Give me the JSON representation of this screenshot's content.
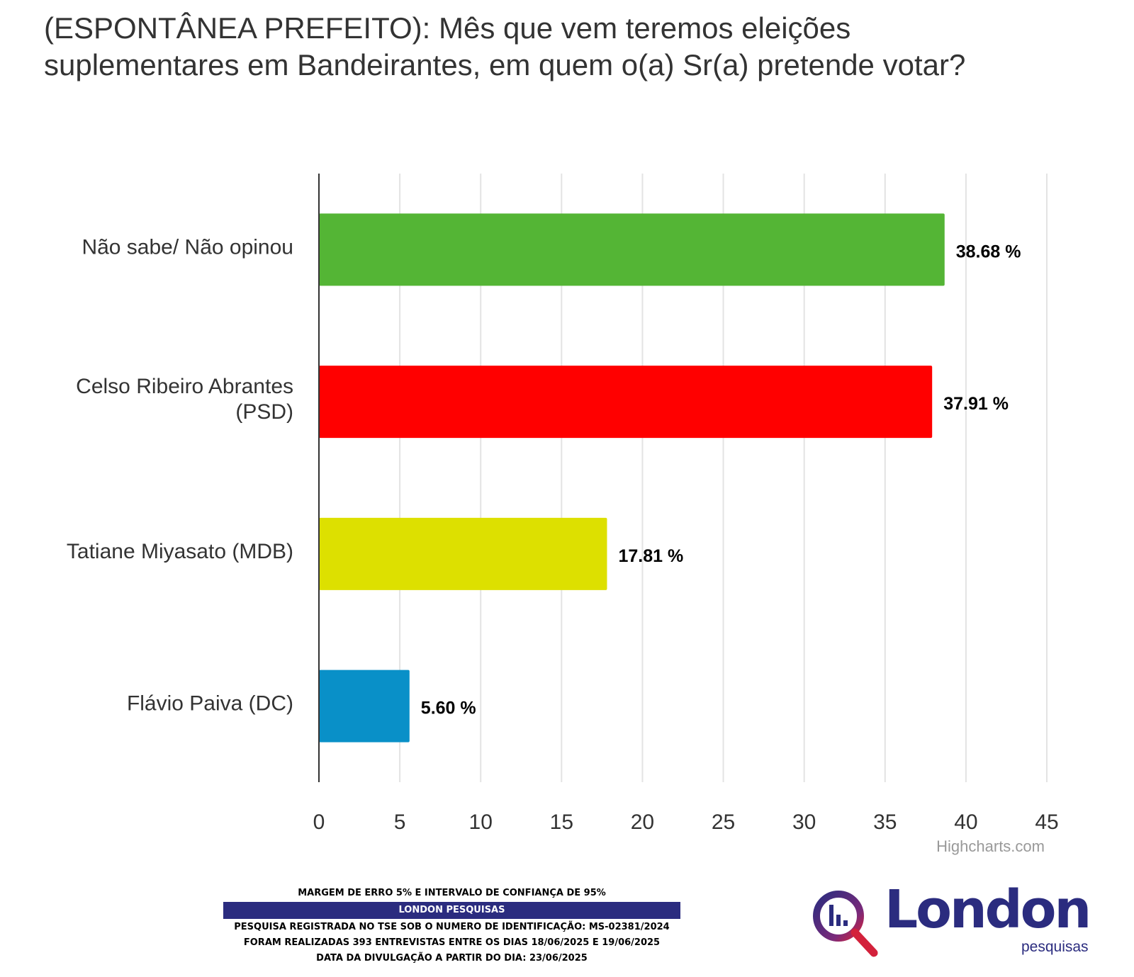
{
  "chart_data": {
    "type": "bar",
    "orientation": "horizontal",
    "title": "(ESPONTÂNEA PREFEITO): Mês que vem teremos eleições suplementares em Bandeirantes, em quem o(a) Sr(a) pretende votar?",
    "categories": [
      [
        "Não sabe/ Não opinou"
      ],
      [
        "Celso Ribeiro Abrantes",
        "(PSD)"
      ],
      [
        "Tatiane Miyasato (MDB)"
      ],
      [
        "Flávio Paiva (DC)"
      ]
    ],
    "values": [
      38.68,
      37.91,
      17.81,
      5.6
    ],
    "data_labels": [
      "38.68 %",
      "37.91 %",
      "17.81 %",
      "5.60 %"
    ],
    "colors": [
      "#54b535",
      "#ff0000",
      "#dde000",
      "#0990c8"
    ],
    "xlim": [
      0,
      45
    ],
    "ticks": [
      0,
      5,
      10,
      15,
      20,
      25,
      30,
      35,
      40,
      45
    ],
    "grid": true,
    "credit": "Highcharts.com"
  },
  "footer": {
    "line1": "MARGEM DE ERRO 5% E INTERVALO DE CONFIANÇA DE 95%",
    "banner": "LONDON PESQUISAS",
    "line2": "PESQUISA REGISTRADA NO TSE SOB O NUMERO DE IDENTIFICAÇÃO: MS-02381/2024",
    "line3": "FORAM REALIZADAS 393 ENTREVISTAS ENTRE OS DIAS 18/06/2025 E 19/06/2025",
    "line4": "DATA DA DIVULGAÇÃO A PARTIR DO DIA: 23/06/2025"
  },
  "logo": {
    "word": "London",
    "sub": "pesquisas",
    "color": "#2b2c7f",
    "accent": "#d3213b"
  }
}
